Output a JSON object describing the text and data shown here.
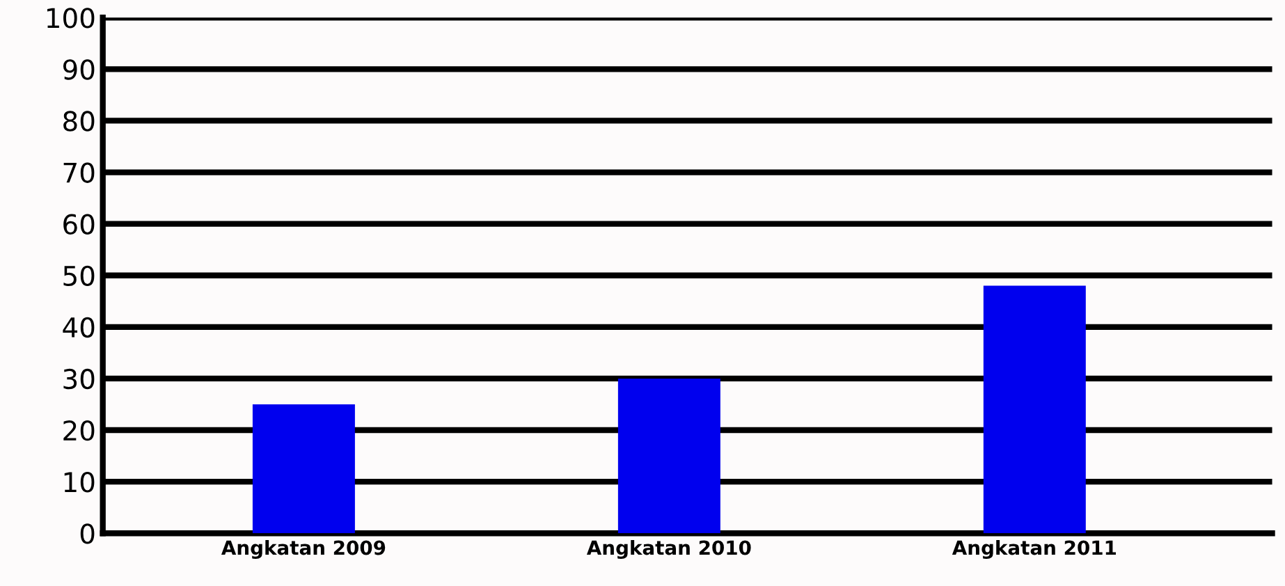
{
  "chart_data": {
    "type": "bar",
    "categories": [
      "Angkatan 2009",
      "Angkatan 2010",
      "Angkatan 2011"
    ],
    "values": [
      25,
      30,
      48
    ],
    "color": "#0000ee",
    "ylim": [
      0,
      100
    ],
    "yticks": [
      0,
      10,
      20,
      30,
      40,
      50,
      60,
      70,
      80,
      90,
      100
    ],
    "grid": "y"
  }
}
